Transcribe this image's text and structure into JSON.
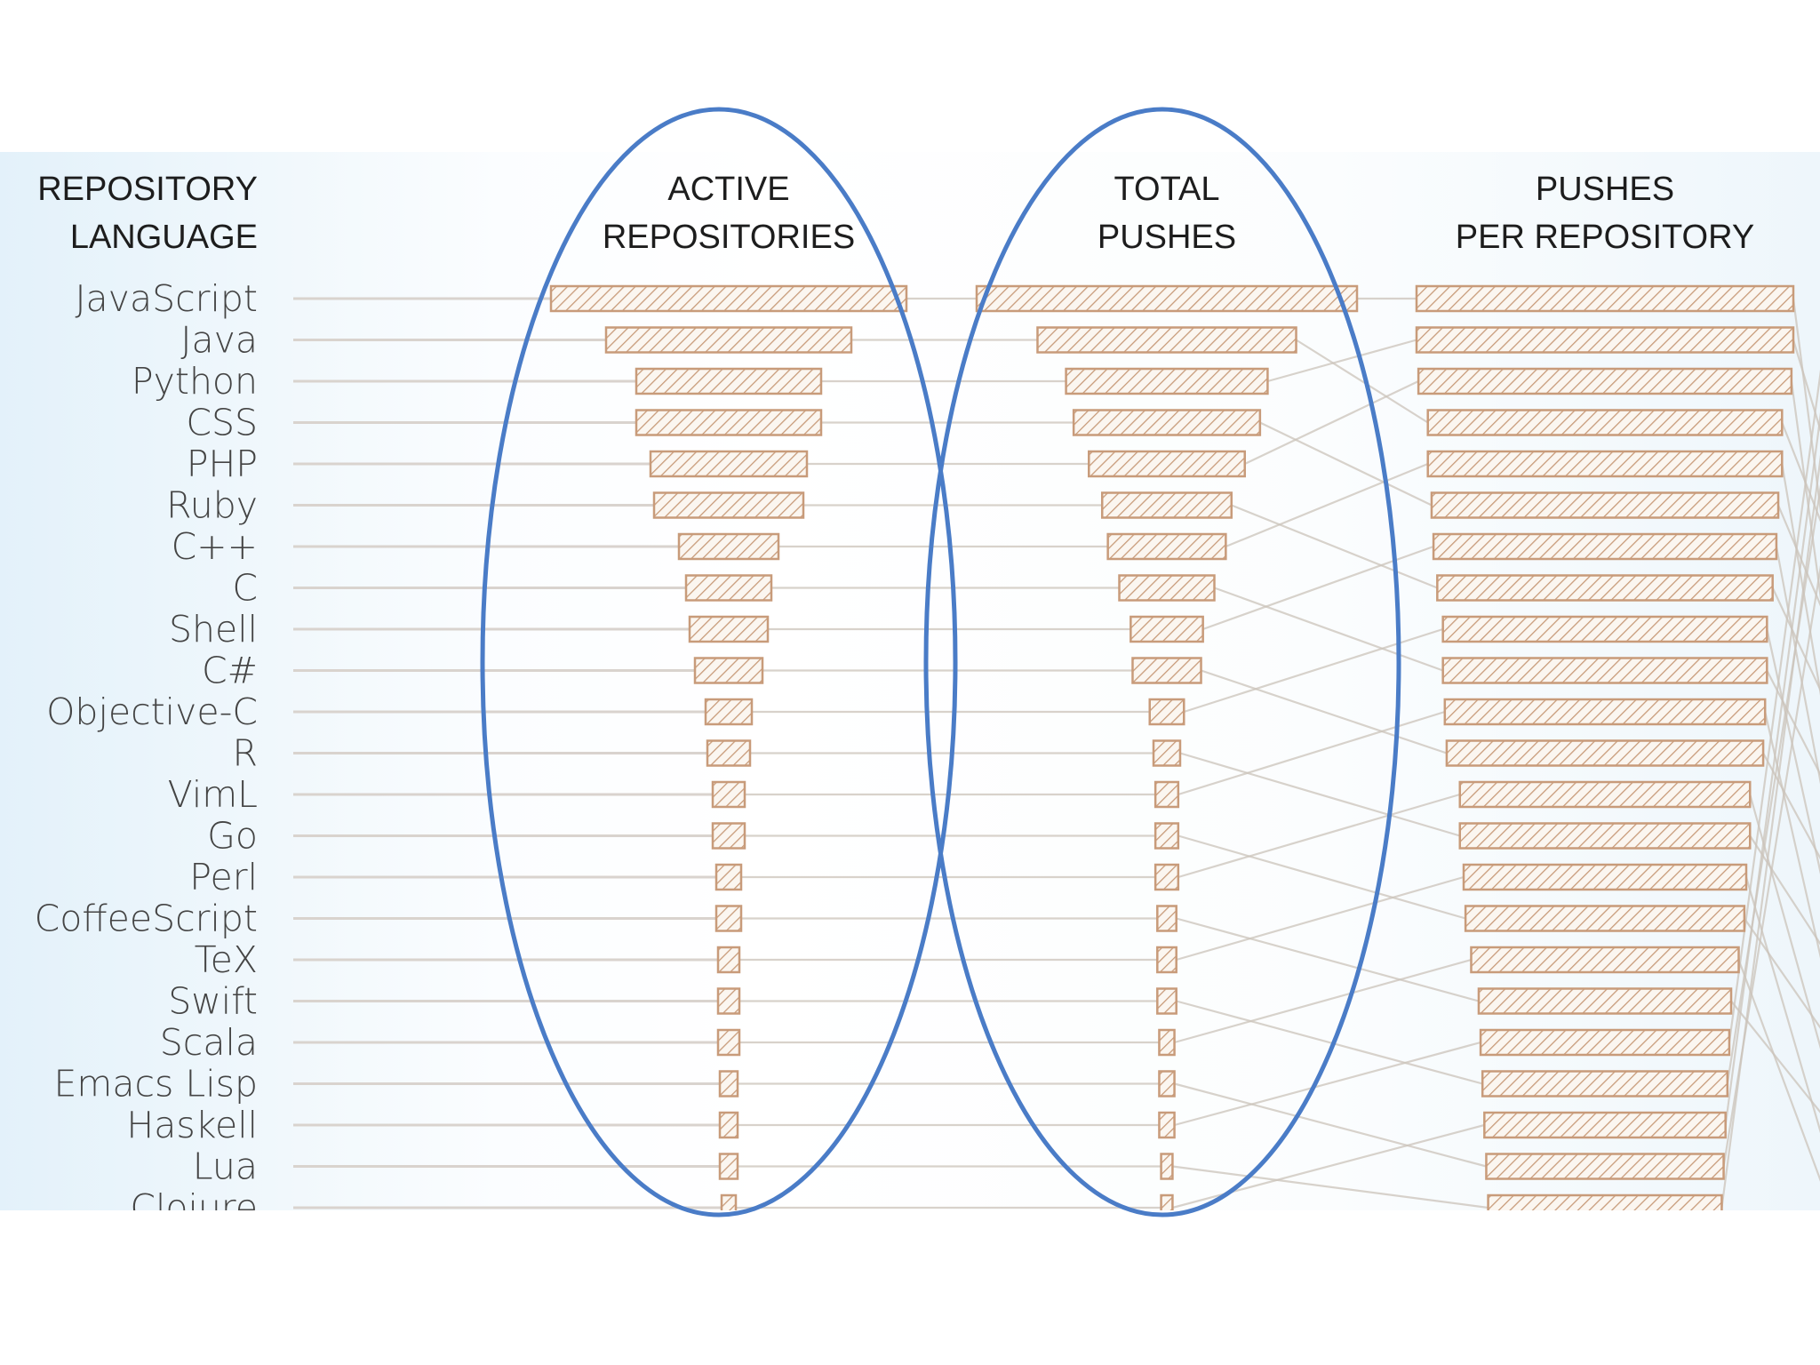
{
  "chart_data": {
    "type": "bar",
    "title": "",
    "headers": {
      "language": [
        "REPOSITORY",
        "LANGUAGE"
      ],
      "active_repositories": [
        "ACTIVE",
        "REPOSITORIES"
      ],
      "total_pushes": [
        "TOTAL",
        "PUSHES"
      ],
      "pushes_per_repository": [
        "PUSHES",
        "PER REPOSITORY"
      ]
    },
    "categories": [
      "JavaScript",
      "Java",
      "Python",
      "CSS",
      "PHP",
      "Ruby",
      "C++",
      "C",
      "Shell",
      "C#",
      "Objective-C",
      "R",
      "VimL",
      "Go",
      "Perl",
      "CoffeeScript",
      "TeX",
      "Swift",
      "Scala",
      "Emacs Lisp",
      "Haskell",
      "Lua",
      "Clojure"
    ],
    "series": [
      {
        "key": "active_repositories",
        "values": [
          100,
          69,
          52,
          52,
          44,
          42,
          28,
          24,
          22,
          19,
          13,
          12,
          9,
          9,
          7,
          7,
          6,
          6,
          6,
          5,
          5,
          5,
          4
        ]
      },
      {
        "key": "total_pushes",
        "values": [
          100,
          68,
          53,
          49,
          41,
          34,
          31,
          25,
          19,
          18,
          9,
          7,
          6,
          6,
          6,
          5,
          5,
          5,
          4,
          4,
          4,
          3,
          3
        ]
      },
      {
        "key": "pushes_per_repository",
        "values": [
          100,
          100,
          99,
          94,
          94,
          92,
          91,
          89,
          86,
          86,
          85,
          84,
          77,
          77,
          75,
          74,
          71,
          67,
          66,
          65,
          64,
          63,
          62
        ]
      }
    ],
    "grid": false,
    "legend": "none",
    "highlights": [
      "active_repositories",
      "total_pushes"
    ]
  },
  "colors": {
    "bar_stroke": "#c89b7a",
    "hatch": "#c89b7a",
    "highlight_oval": "#4a7cc7",
    "guide_line": "#d9d3ce",
    "slope_line": "#cbc3ba"
  }
}
